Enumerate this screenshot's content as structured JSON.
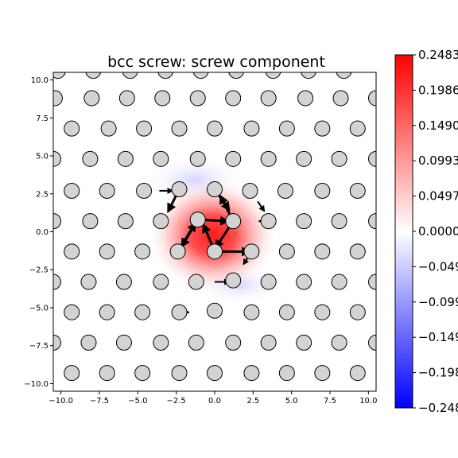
{
  "chart_data": {
    "type": "scatter",
    "title": "bcc screw: screw component",
    "xlim": [
      -10.5,
      10.5
    ],
    "ylim": [
      -10.5,
      10.5
    ],
    "xticks": [
      "−10.0",
      "−7.5",
      "−5.0",
      "−2.5",
      "0.0",
      "2.5",
      "5.0",
      "7.5",
      "10.0"
    ],
    "yticks": [
      "10.0",
      "7.5",
      "5.0",
      "2.5",
      "0.0",
      "−2.5",
      "−5.0",
      "−7.5",
      "−10.0"
    ],
    "grid": false,
    "colorbar": {
      "cmap": "bwr",
      "range": [
        -0.2483,
        0.2483
      ],
      "ticks": [
        "0.2483",
        "0.1986",
        "0.1490",
        "0.0993",
        "0.0497",
        "0.0000",
        "−0.0497",
        "−0.0993",
        "−0.1490",
        "−0.1986",
        "−0.2483"
      ]
    },
    "atoms": [
      [
        -10.2,
        10.6
      ],
      [
        -7.9,
        10.6
      ],
      [
        -5.5,
        10.6
      ],
      [
        -3.2,
        10.6
      ],
      [
        -0.9,
        10.6
      ],
      [
        1.4,
        10.6
      ],
      [
        3.8,
        10.6
      ],
      [
        6.1,
        10.6
      ],
      [
        8.4,
        10.6
      ],
      [
        -10.4,
        8.8
      ],
      [
        -8.0,
        8.8
      ],
      [
        -5.7,
        8.8
      ],
      [
        -3.4,
        8.8
      ],
      [
        -1.1,
        8.8
      ],
      [
        1.2,
        8.8
      ],
      [
        3.5,
        8.8
      ],
      [
        5.9,
        8.8
      ],
      [
        8.2,
        8.8
      ],
      [
        10.5,
        8.8
      ],
      [
        -9.3,
        6.8
      ],
      [
        -6.9,
        6.8
      ],
      [
        -4.6,
        6.8
      ],
      [
        -2.3,
        6.8
      ],
      [
        0.0,
        6.8
      ],
      [
        2.4,
        6.8
      ],
      [
        4.7,
        6.8
      ],
      [
        7.0,
        6.8
      ],
      [
        9.3,
        6.8
      ],
      [
        -10.5,
        4.8
      ],
      [
        -8.1,
        4.8
      ],
      [
        -5.8,
        4.8
      ],
      [
        -3.5,
        4.8
      ],
      [
        -1.1,
        4.8
      ],
      [
        1.2,
        4.8
      ],
      [
        3.5,
        4.8
      ],
      [
        5.8,
        4.8
      ],
      [
        8.1,
        4.8
      ],
      [
        10.5,
        4.8
      ],
      [
        -9.3,
        2.7
      ],
      [
        -7.0,
        2.7
      ],
      [
        -4.6,
        2.7
      ],
      [
        -2.3,
        2.8
      ],
      [
        0.0,
        2.8
      ],
      [
        2.3,
        2.7
      ],
      [
        4.6,
        2.7
      ],
      [
        7.0,
        2.7
      ],
      [
        9.3,
        2.7
      ],
      [
        -10.5,
        0.7
      ],
      [
        -8.1,
        0.7
      ],
      [
        -5.8,
        0.7
      ],
      [
        -3.5,
        0.7
      ],
      [
        -1.1,
        0.8
      ],
      [
        1.2,
        0.7
      ],
      [
        3.5,
        0.7
      ],
      [
        5.8,
        0.7
      ],
      [
        8.1,
        0.7
      ],
      [
        10.5,
        0.7
      ],
      [
        -9.3,
        -1.3
      ],
      [
        -7.0,
        -1.3
      ],
      [
        -4.7,
        -1.3
      ],
      [
        -2.4,
        -1.3
      ],
      [
        0.0,
        -1.3
      ],
      [
        2.4,
        -1.3
      ],
      [
        4.7,
        -1.3
      ],
      [
        7.0,
        -1.3
      ],
      [
        9.3,
        -1.3
      ],
      [
        -10.5,
        -3.3
      ],
      [
        -8.2,
        -3.3
      ],
      [
        -5.9,
        -3.3
      ],
      [
        -3.5,
        -3.3
      ],
      [
        -1.2,
        -3.3
      ],
      [
        1.2,
        -3.2
      ],
      [
        3.5,
        -3.3
      ],
      [
        5.8,
        -3.3
      ],
      [
        8.1,
        -3.3
      ],
      [
        10.5,
        -3.3
      ],
      [
        -9.3,
        -5.3
      ],
      [
        -7.0,
        -5.3
      ],
      [
        -4.7,
        -5.3
      ],
      [
        -2.3,
        -5.3
      ],
      [
        0.0,
        -5.2
      ],
      [
        2.4,
        -5.3
      ],
      [
        4.7,
        -5.3
      ],
      [
        7.0,
        -5.3
      ],
      [
        9.3,
        -5.3
      ],
      [
        -10.5,
        -7.3
      ],
      [
        -8.2,
        -7.3
      ],
      [
        -5.9,
        -7.3
      ],
      [
        -3.5,
        -7.3
      ],
      [
        -1.2,
        -7.3
      ],
      [
        1.2,
        -7.3
      ],
      [
        3.5,
        -7.3
      ],
      [
        5.8,
        -7.3
      ],
      [
        8.1,
        -7.3
      ],
      [
        10.5,
        -7.3
      ],
      [
        -9.3,
        -9.3
      ],
      [
        -7.0,
        -9.3
      ],
      [
        -4.7,
        -9.3
      ],
      [
        -2.3,
        -9.3
      ],
      [
        0.0,
        -9.3
      ],
      [
        2.4,
        -9.3
      ],
      [
        4.7,
        -9.3
      ],
      [
        7.0,
        -9.3
      ],
      [
        9.3,
        -9.3
      ]
    ],
    "arrows": [
      [
        0.0,
        -1.3,
        2.2,
        -1.3
      ],
      [
        0.0,
        -1.3,
        -0.7,
        0.4
      ],
      [
        -1.1,
        0.8,
        0.8,
        0.7
      ],
      [
        1.2,
        0.7,
        0.1,
        -1.0
      ],
      [
        -1.1,
        0.8,
        -2.1,
        -0.9
      ],
      [
        1.2,
        0.7,
        0.4,
        2.3
      ],
      [
        -2.4,
        -1.3,
        -1.3,
        0.5
      ],
      [
        -2.3,
        2.8,
        -3.0,
        1.4
      ],
      [
        0.0,
        2.8,
        0.9,
        1.5
      ],
      [
        0.0,
        -3.3,
        0.9,
        -3.3
      ],
      [
        -3.6,
        2.7,
        -2.8,
        2.7
      ],
      [
        2.4,
        -1.3,
        1.9,
        -2.1
      ],
      [
        2.8,
        2.0,
        3.2,
        1.4
      ],
      [
        4.8,
        2.7,
        4.4,
        2.7
      ],
      [
        -2.2,
        -5.3,
        -1.7,
        -5.3
      ],
      [
        3.3,
        0.7,
        2.9,
        0.7
      ]
    ]
  }
}
